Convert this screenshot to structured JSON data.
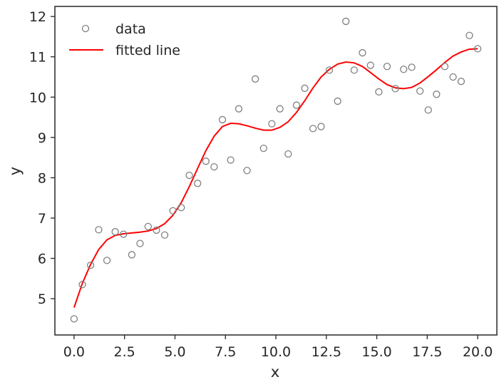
{
  "chart_data": {
    "type": "scatter",
    "title": "",
    "xlabel": "x",
    "ylabel": "y",
    "xlim": [
      -0.95,
      20.95
    ],
    "ylim": [
      4.1,
      12.25
    ],
    "xticks": [
      0.0,
      2.5,
      5.0,
      7.5,
      10.0,
      12.5,
      15.0,
      17.5,
      20.0
    ],
    "xtick_labels": [
      "0.0",
      "2.5",
      "5.0",
      "7.5",
      "10.0",
      "12.5",
      "15.0",
      "17.5",
      "20.0"
    ],
    "yticks": [
      5,
      6,
      7,
      8,
      9,
      10,
      11,
      12
    ],
    "ytick_labels": [
      "5",
      "6",
      "7",
      "8",
      "9",
      "10",
      "11",
      "12"
    ],
    "grid": false,
    "legend_position": "top-left",
    "series": [
      {
        "name": "data",
        "kind": "scatter",
        "marker": "open-circle",
        "color": "#808080",
        "x": [
          0.0,
          0.41,
          0.82,
          1.22,
          1.63,
          2.04,
          2.45,
          2.86,
          3.27,
          3.67,
          4.08,
          4.49,
          4.9,
          5.31,
          5.71,
          6.12,
          6.53,
          6.94,
          7.35,
          7.76,
          8.16,
          8.57,
          8.98,
          9.39,
          9.8,
          10.2,
          10.61,
          11.02,
          11.43,
          11.84,
          12.24,
          12.65,
          13.06,
          13.47,
          13.88,
          14.29,
          14.69,
          15.1,
          15.51,
          15.92,
          16.33,
          16.73,
          17.14,
          17.55,
          17.96,
          18.37,
          18.78,
          19.18,
          19.59,
          20.0
        ],
        "y": [
          4.5,
          5.35,
          5.83,
          6.71,
          5.95,
          6.66,
          6.6,
          6.09,
          6.37,
          6.79,
          6.7,
          6.58,
          7.18,
          7.26,
          8.06,
          7.86,
          8.41,
          8.27,
          9.44,
          8.44,
          9.71,
          8.18,
          10.45,
          8.73,
          9.34,
          9.71,
          8.59,
          9.8,
          10.22,
          9.22,
          9.27,
          10.67,
          9.9,
          11.88,
          10.67,
          11.1,
          10.79,
          10.13,
          10.76,
          10.21,
          10.69,
          10.74,
          10.15,
          9.68,
          10.07,
          10.76,
          10.5,
          10.39,
          11.53,
          11.2
        ]
      },
      {
        "name": "fitted line",
        "kind": "line",
        "color": "#ff0000",
        "x": [
          0.0,
          0.41,
          0.82,
          1.22,
          1.63,
          2.04,
          2.45,
          2.86,
          3.27,
          3.67,
          4.08,
          4.49,
          4.9,
          5.31,
          5.71,
          6.12,
          6.53,
          6.94,
          7.35,
          7.76,
          8.16,
          8.57,
          8.98,
          9.39,
          9.8,
          10.2,
          10.61,
          11.02,
          11.43,
          11.84,
          12.24,
          12.65,
          13.06,
          13.47,
          13.88,
          14.29,
          14.69,
          15.1,
          15.51,
          15.92,
          16.33,
          16.73,
          17.14,
          17.55,
          17.96,
          18.37,
          18.78,
          19.18,
          19.59,
          20.0
        ],
        "y": [
          4.78,
          5.38,
          5.85,
          6.22,
          6.46,
          6.57,
          6.61,
          6.63,
          6.65,
          6.68,
          6.74,
          6.86,
          7.07,
          7.38,
          7.78,
          8.23,
          8.67,
          9.03,
          9.27,
          9.35,
          9.34,
          9.29,
          9.23,
          9.18,
          9.18,
          9.25,
          9.39,
          9.62,
          9.91,
          10.23,
          10.5,
          10.69,
          10.82,
          10.87,
          10.85,
          10.76,
          10.61,
          10.45,
          10.31,
          10.23,
          10.21,
          10.24,
          10.35,
          10.51,
          10.68,
          10.86,
          11.02,
          11.12,
          11.19,
          11.2
        ]
      }
    ]
  }
}
